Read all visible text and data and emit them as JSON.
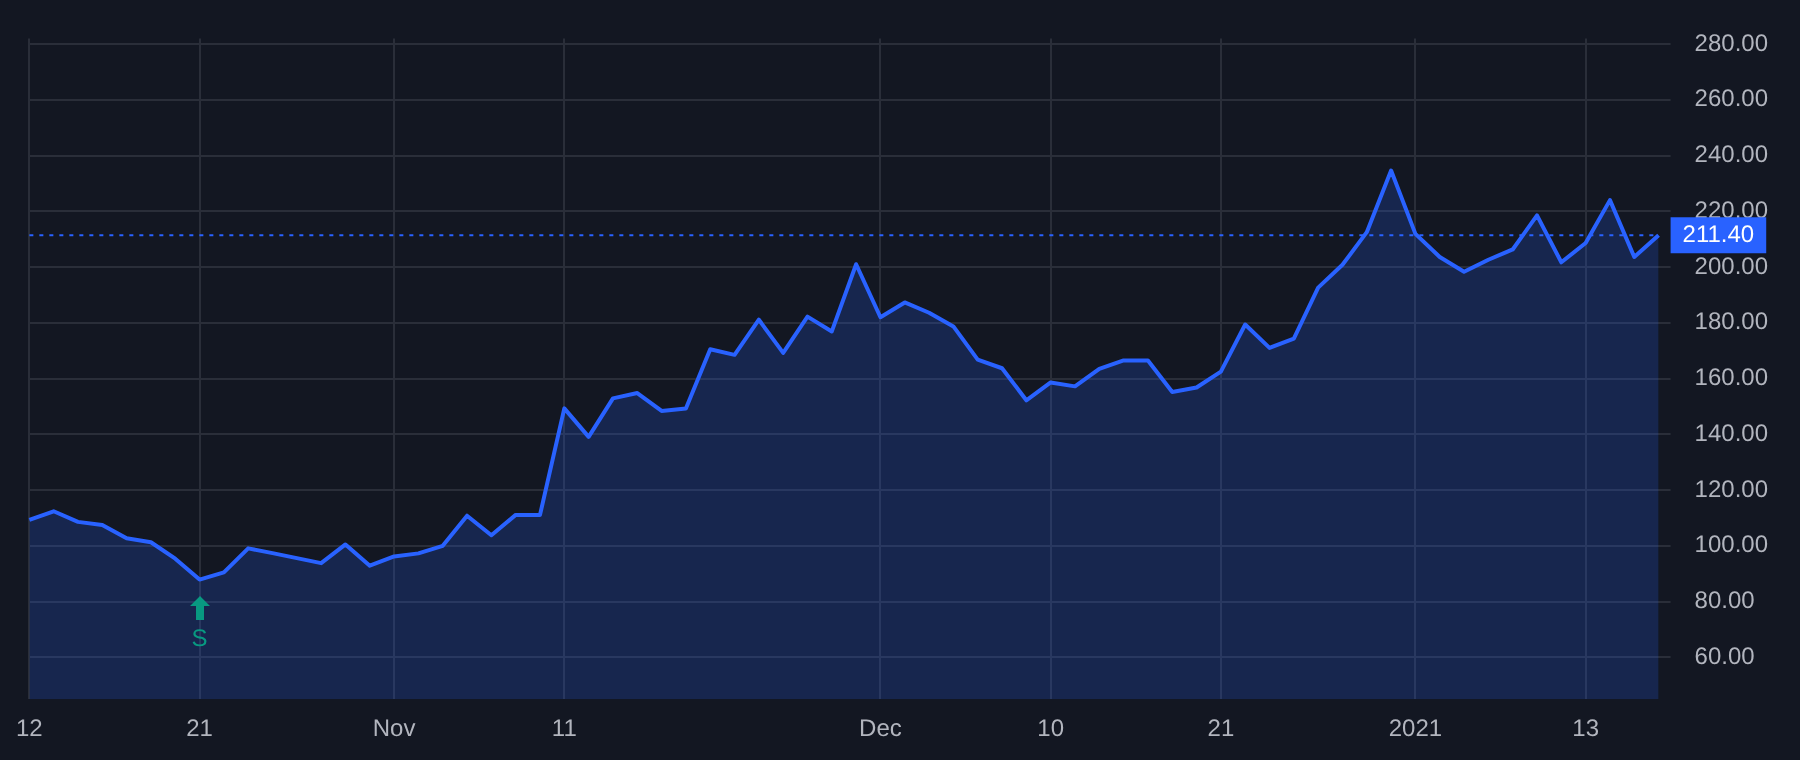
{
  "chart_data": {
    "type": "area",
    "categories": [
      "12",
      null,
      null,
      null,
      null,
      null,
      null,
      "21",
      null,
      null,
      null,
      null,
      null,
      null,
      null,
      "Nov",
      null,
      null,
      null,
      null,
      null,
      null,
      "11",
      null,
      null,
      null,
      null,
      null,
      null,
      null,
      null,
      null,
      null,
      null,
      null,
      "Dec",
      null,
      null,
      null,
      null,
      null,
      null,
      "10",
      null,
      null,
      null,
      null,
      null,
      null,
      "21",
      null,
      null,
      null,
      null,
      null,
      null,
      null,
      "2021",
      null,
      null,
      null,
      null,
      null,
      null,
      "13",
      null,
      null,
      null
    ],
    "series": [
      {
        "color": "#2962ff",
        "values": [
          109.3,
          112.4,
          108.6,
          107.5,
          102.7,
          101.3,
          95.4,
          87.9,
          90.5,
          99.1,
          97.4,
          95.6,
          93.8,
          100.5,
          92.9,
          96.2,
          97.3,
          100,
          110.8,
          103.8,
          111.1,
          111.1,
          149.3,
          139.1,
          152.9,
          154.8,
          148.4,
          149.3,
          170.5,
          168.5,
          181.1,
          169.2,
          182.2,
          176.9,
          201,
          182,
          187.3,
          183.6,
          178.7,
          166.8,
          163.7,
          152.2,
          158.6,
          157.2,
          163.5,
          166.5,
          166.5,
          155.2,
          156.8,
          162.5,
          179.4,
          171,
          174.3,
          192.6,
          200.8,
          212.5,
          234.6,
          211.9,
          203.6,
          198.3,
          202.6,
          206.3,
          218.5,
          201.7,
          208.6,
          224,
          203.6,
          211.4
        ]
      }
    ],
    "ylim": [
      45,
      282
    ],
    "yticks": [
      {
        "value": 60,
        "label": "60.00"
      },
      {
        "value": 80,
        "label": "80.00"
      },
      {
        "value": 100,
        "label": "100.00"
      },
      {
        "value": 120,
        "label": "120.00"
      },
      {
        "value": 140,
        "label": "140.00"
      },
      {
        "value": 160,
        "label": "160.00"
      },
      {
        "value": 180,
        "label": "180.00"
      },
      {
        "value": 200,
        "label": "200.00"
      },
      {
        "value": 220,
        "label": "220.00"
      },
      {
        "value": 240,
        "label": "240.00"
      },
      {
        "value": 260,
        "label": "260.00"
      },
      {
        "value": 280,
        "label": "280.00"
      }
    ],
    "ref_lines": [
      {
        "axis": "y",
        "value": 211.4,
        "label": "211.40",
        "color": "#2962ff",
        "line_style": "dotted"
      }
    ],
    "annotations": [
      {
        "text": "S",
        "x": "21",
        "y": 87.9
      }
    ],
    "grid": true,
    "legend": false,
    "marker": "none",
    "line_style": "solid"
  }
}
